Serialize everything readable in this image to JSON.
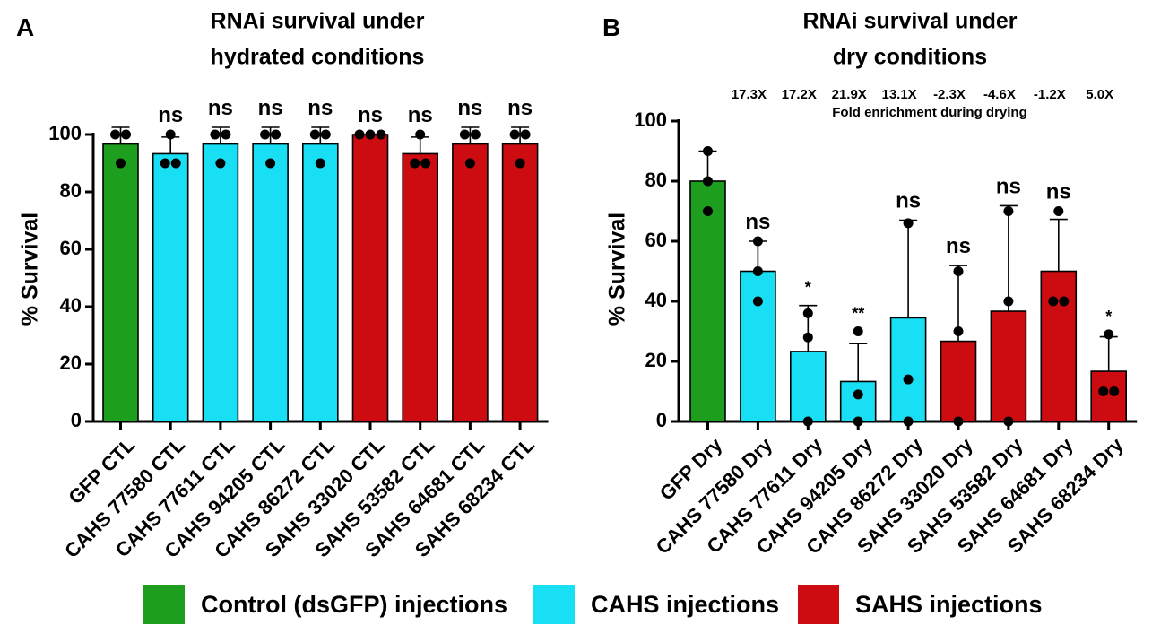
{
  "colors": {
    "control": "#1e9e1e",
    "cahs": "#19dff5",
    "sahs": "#cc0c10"
  },
  "legend": [
    {
      "label": "Control (dsGFP) injections",
      "color_key": "control"
    },
    {
      "label": "CAHS injections",
      "color_key": "cahs"
    },
    {
      "label": "SAHS injections",
      "color_key": "sahs"
    }
  ],
  "chart_data": [
    {
      "panel_letter": "A",
      "type": "bar",
      "title": "RNAi survival under hydrated conditions",
      "title_lines": [
        "RNAi survival under",
        "hydrated conditions"
      ],
      "xlabel": "",
      "ylabel": "% Survival",
      "ylim": [
        0,
        100
      ],
      "yticks": [
        0,
        20,
        40,
        60,
        80,
        100
      ],
      "grid": false,
      "categories": [
        "GFP CTL",
        "CAHS 77580 CTL",
        "CAHS 77611 CTL",
        "CAHS 94205 CTL",
        "CAHS 86272 CTL",
        "SAHS 33020 CTL",
        "SAHS 53582 CTL",
        "SAHS 64681 CTL",
        "SAHS 68234 CTL"
      ],
      "groups": [
        "control",
        "cahs",
        "cahs",
        "cahs",
        "cahs",
        "sahs",
        "sahs",
        "sahs",
        "sahs"
      ],
      "values": [
        96.7,
        93.3,
        96.7,
        96.7,
        96.7,
        100,
        93.3,
        96.7,
        96.7
      ],
      "error": [
        5.8,
        5.8,
        5.8,
        5.8,
        5.8,
        0,
        5.8,
        5.8,
        5.8
      ],
      "points": [
        [
          100,
          100,
          90
        ],
        [
          100,
          90,
          90
        ],
        [
          100,
          100,
          90
        ],
        [
          100,
          100,
          90
        ],
        [
          100,
          100,
          90
        ],
        [
          100,
          100,
          100
        ],
        [
          100,
          90,
          90
        ],
        [
          100,
          100,
          90
        ],
        [
          100,
          100,
          90
        ]
      ],
      "significance": [
        "",
        "ns",
        "ns",
        "ns",
        "ns",
        "ns",
        "ns",
        "ns",
        "ns"
      ]
    },
    {
      "panel_letter": "B",
      "type": "bar",
      "title": "RNAi survival under dry conditions",
      "title_lines": [
        "RNAi survival under",
        "dry conditions"
      ],
      "xlabel": "",
      "ylabel": "% Survival",
      "ylim": [
        0,
        100
      ],
      "yticks": [
        0,
        20,
        40,
        60,
        80,
        100
      ],
      "grid": false,
      "categories": [
        "GFP Dry",
        "CAHS 77580 Dry",
        "CAHS 77611 Dry",
        "CAHS 94205 Dry",
        "CAHS 86272 Dry",
        "SAHS 33020 Dry",
        "SAHS 53582 Dry",
        "SAHS 64681 Dry",
        "SAHS 68234 Dry"
      ],
      "groups": [
        "control",
        "cahs",
        "cahs",
        "cahs",
        "cahs",
        "sahs",
        "sahs",
        "sahs",
        "sahs"
      ],
      "values": [
        80,
        50,
        23.3,
        13.3,
        34.5,
        26.7,
        36.7,
        50,
        16.7
      ],
      "error": [
        10,
        10,
        15.3,
        12.6,
        32.5,
        25.2,
        35.1,
        17.3,
        11.5
      ],
      "points": [
        [
          90,
          80,
          70
        ],
        [
          60,
          50,
          40
        ],
        [
          36,
          28,
          0
        ],
        [
          30,
          9,
          0
        ],
        [
          66,
          14,
          0
        ],
        [
          50,
          30,
          0
        ],
        [
          70,
          40,
          0
        ],
        [
          70,
          40,
          40
        ],
        [
          29,
          10,
          10
        ]
      ],
      "significance": [
        "",
        "ns",
        "*",
        "**",
        "ns",
        "ns",
        "ns",
        "ns",
        "*"
      ],
      "fold_enrichment": [
        "",
        "17.3X",
        "17.2X",
        "21.9X",
        "13.1X",
        "-2.3X",
        "-4.6X",
        "-1.2X",
        "5.0X"
      ],
      "fold_enrichment_label": "Fold enrichment during drying"
    }
  ]
}
